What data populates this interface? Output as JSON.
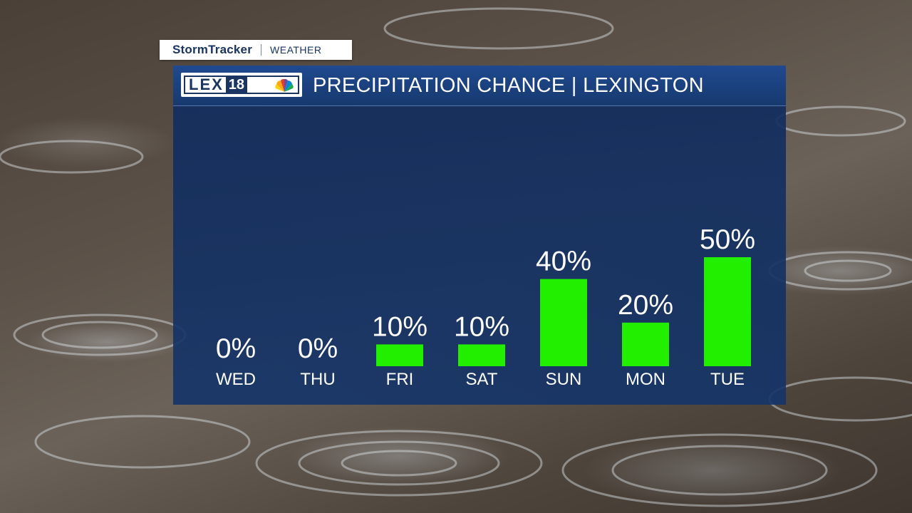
{
  "header": {
    "brand": "StormTracker",
    "section": "WEATHER"
  },
  "panel": {
    "logo_text": "LEX",
    "logo_number": "18",
    "title": "PRECIPITATION CHANCE | LEXINGTON"
  },
  "colors": {
    "bar": "#22ee00",
    "panel": "#17396f"
  },
  "chart_data": {
    "type": "bar",
    "categories": [
      "WED",
      "THU",
      "FRI",
      "SAT",
      "SUN",
      "MON",
      "TUE"
    ],
    "values": [
      0,
      0,
      10,
      10,
      40,
      20,
      50
    ],
    "value_labels": [
      "0%",
      "0%",
      "10%",
      "10%",
      "40%",
      "20%",
      "50%"
    ],
    "unit": "%",
    "title": "PRECIPITATION CHANCE | LEXINGTON",
    "xlabel": "",
    "ylabel": "",
    "ylim": [
      0,
      100
    ],
    "grid": false,
    "legend": "none"
  }
}
